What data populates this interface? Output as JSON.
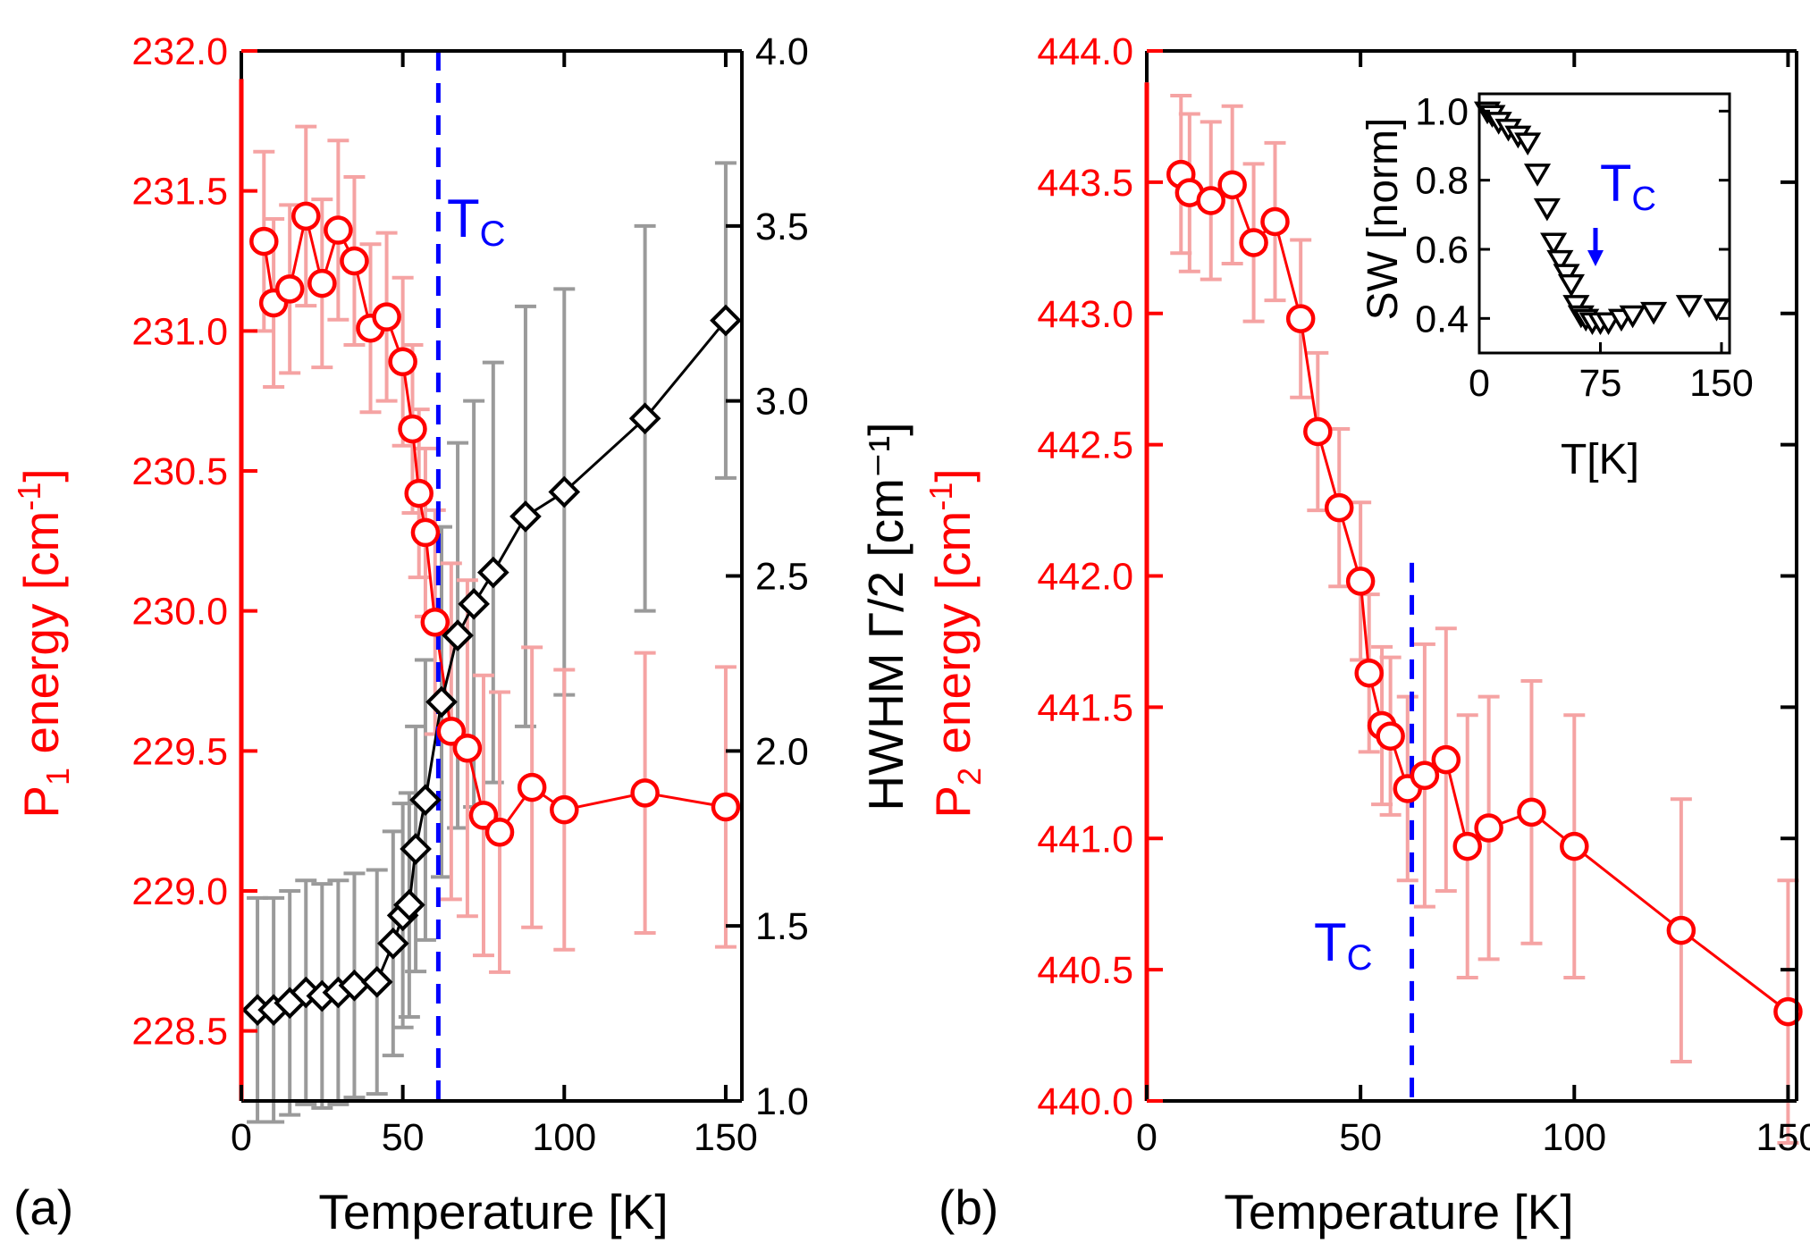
{
  "colors": {
    "p_series": "#ff0000",
    "p_error": "#f5a3a3",
    "hwhm_series": "#000000",
    "hwhm_error": "#9a9a9a",
    "tc_line": "#0000ff"
  },
  "chart_data": [
    {
      "type": "scatter",
      "panel_label": "(a)",
      "xlabel": "Temperature [K]",
      "xlim": [
        0,
        155
      ],
      "xticks": [
        "0",
        "50",
        "100",
        "150"
      ],
      "ylabel_left": {
        "main": "P",
        "sub": "1",
        "rest": " energy [cm",
        "sup": "-1",
        "end": "]"
      },
      "ylim_left": [
        228.25,
        232.0
      ],
      "yticks_left": [
        "228.5",
        "229.0",
        "229.5",
        "230.0",
        "230.5",
        "231.0",
        "231.5",
        "232.0"
      ],
      "ylabel_right": "HWHM Γ/2 [cm⁻¹]",
      "ylim_right": [
        1.0,
        4.0
      ],
      "yticks_right": [
        "1.0",
        "1.5",
        "2.0",
        "2.5",
        "3.0",
        "3.5",
        "4.0"
      ],
      "tc": {
        "x": 61,
        "label": "T",
        "sub": "C"
      },
      "series": [
        {
          "name": "P1 energy",
          "axis": "left",
          "marker": "circle",
          "x": [
            7,
            10,
            15,
            20,
            25,
            30,
            35,
            40,
            45,
            50,
            53,
            55,
            57,
            60,
            65,
            70,
            75,
            80,
            90,
            100,
            125,
            150
          ],
          "y": [
            231.32,
            231.1,
            231.15,
            231.41,
            231.17,
            231.36,
            231.25,
            231.01,
            231.05,
            230.89,
            230.65,
            230.42,
            230.28,
            229.96,
            229.57,
            229.51,
            229.27,
            229.21,
            229.37,
            229.29,
            229.35,
            229.3
          ],
          "err": [
            0.32,
            0.3,
            0.3,
            0.32,
            0.3,
            0.32,
            0.3,
            0.3,
            0.3,
            0.3,
            0.3,
            0.3,
            0.3,
            0.4,
            0.6,
            0.6,
            0.5,
            0.5,
            0.5,
            0.5,
            0.5,
            0.5
          ]
        },
        {
          "name": "HWHM",
          "axis": "right",
          "marker": "diamond",
          "x": [
            5,
            10,
            15,
            20,
            25,
            30,
            35,
            42,
            47,
            50,
            52,
            54,
            57,
            62,
            67,
            72,
            78,
            88,
            100,
            125,
            150
          ],
          "y": [
            1.26,
            1.26,
            1.28,
            1.31,
            1.3,
            1.31,
            1.33,
            1.34,
            1.45,
            1.53,
            1.56,
            1.72,
            1.86,
            2.14,
            2.33,
            2.42,
            2.51,
            2.67,
            2.74,
            2.95,
            3.23
          ],
          "err": [
            0.32,
            0.32,
            0.32,
            0.32,
            0.32,
            0.32,
            0.32,
            0.32,
            0.32,
            0.32,
            0.32,
            0.35,
            0.4,
            0.5,
            0.55,
            0.58,
            0.6,
            0.6,
            0.58,
            0.55,
            0.45
          ]
        }
      ]
    },
    {
      "type": "scatter",
      "panel_label": "(b)",
      "xlabel": "Temperature [K]",
      "xlim": [
        0,
        152
      ],
      "xticks": [
        "0",
        "50",
        "100",
        "150"
      ],
      "ylabel_left": {
        "main": "P",
        "sub": "2",
        "rest": " energy [cm",
        "sup": "-1",
        "end": "]"
      },
      "ylim_left": [
        440.0,
        444.0
      ],
      "yticks_left": [
        "440.0",
        "440.5",
        "441.0",
        "441.5",
        "442.0",
        "442.5",
        "443.0",
        "443.5",
        "444.0"
      ],
      "tc": {
        "x": 62,
        "label": "T",
        "sub": "C"
      },
      "series": [
        {
          "name": "P2 energy",
          "axis": "left",
          "marker": "circle",
          "x": [
            8,
            10,
            15,
            20,
            25,
            30,
            36,
            40,
            45,
            50,
            52,
            55,
            57,
            61,
            65,
            70,
            75,
            80,
            90,
            100,
            125,
            150
          ],
          "y": [
            443.53,
            443.46,
            443.43,
            443.49,
            443.27,
            443.35,
            442.98,
            442.55,
            442.26,
            441.98,
            441.63,
            441.43,
            441.39,
            441.19,
            441.24,
            441.3,
            440.97,
            441.04,
            441.1,
            440.97,
            440.65,
            440.34
          ],
          "err": [
            0.3,
            0.3,
            0.3,
            0.3,
            0.3,
            0.3,
            0.3,
            0.3,
            0.3,
            0.3,
            0.3,
            0.3,
            0.3,
            0.35,
            0.5,
            0.5,
            0.5,
            0.5,
            0.5,
            0.5,
            0.5,
            0.5
          ]
        }
      ],
      "inset": {
        "type": "scatter",
        "marker": "triangle-down",
        "xlabel": "T[K]",
        "ylabel": "SW [norm]",
        "xlim": [
          0,
          155
        ],
        "xticks": [
          "0",
          "75",
          "150"
        ],
        "ylim": [
          0.3,
          1.05
        ],
        "yticks": [
          "0.4",
          "0.6",
          "0.8",
          "1.0"
        ],
        "tc": {
          "x": 70,
          "label": "T",
          "sub": "C"
        },
        "x": [
          5,
          8,
          12,
          18,
          24,
          30,
          36,
          42,
          46,
          50,
          54,
          57,
          60,
          63,
          66,
          70,
          75,
          80,
          88,
          95,
          108,
          130,
          147
        ],
        "y": [
          1.0,
          0.99,
          0.97,
          0.95,
          0.93,
          0.91,
          0.82,
          0.72,
          0.62,
          0.57,
          0.53,
          0.5,
          0.44,
          0.41,
          0.4,
          0.39,
          0.39,
          0.39,
          0.4,
          0.41,
          0.42,
          0.44,
          0.43
        ]
      }
    }
  ]
}
